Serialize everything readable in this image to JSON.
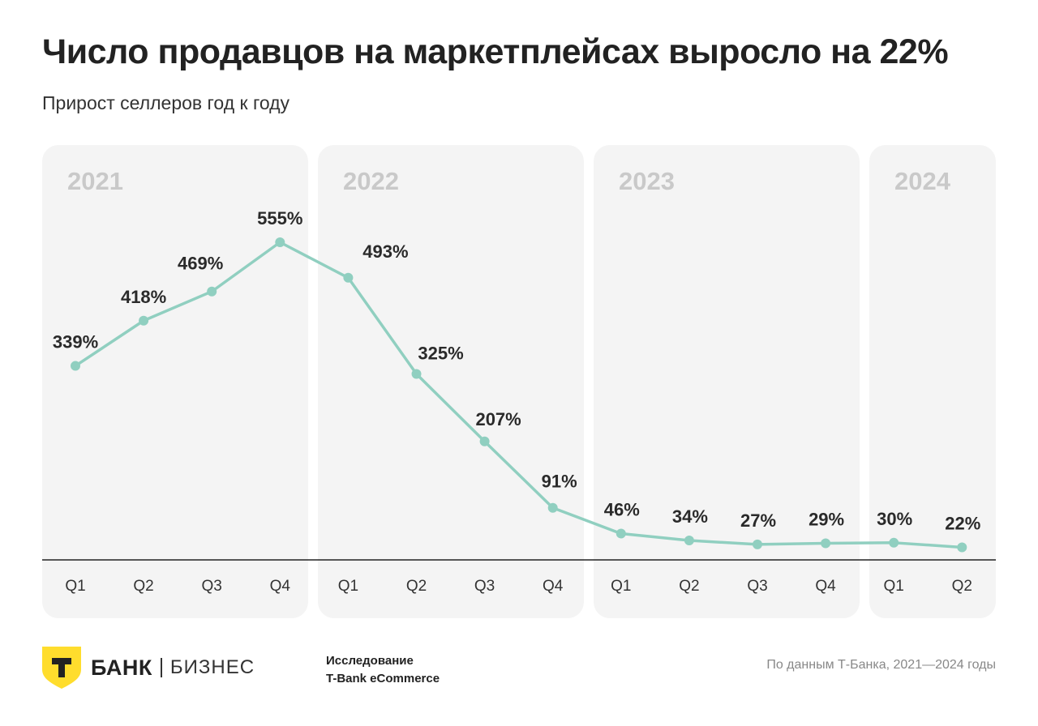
{
  "chart_data": {
    "type": "line",
    "title": "Число продавцов на маркетплейсах выросло на 22%",
    "subtitle": "Прирост селлеров год к году",
    "xlabel": "",
    "ylabel": "",
    "ylim": [
      0,
      555
    ],
    "grid": false,
    "groups": [
      {
        "label": "2021",
        "categories": [
          "Q1",
          "Q2",
          "Q3",
          "Q4"
        ]
      },
      {
        "label": "2022",
        "categories": [
          "Q1",
          "Q2",
          "Q3",
          "Q4"
        ]
      },
      {
        "label": "2023",
        "categories": [
          "Q1",
          "Q2",
          "Q3",
          "Q4"
        ]
      },
      {
        "label": "2024",
        "categories": [
          "Q1",
          "Q2"
        ]
      }
    ],
    "values": [
      339,
      418,
      469,
      555,
      493,
      325,
      207,
      91,
      46,
      34,
      27,
      29,
      30,
      22
    ],
    "data_labels": [
      "339%",
      "418%",
      "469%",
      "555%",
      "493%",
      "325%",
      "207%",
      "91%",
      "46%",
      "34%",
      "27%",
      "29%",
      "30%",
      "22%"
    ],
    "line_color": "#90cfc0"
  },
  "footer": {
    "brand": "БАНК",
    "brand_letter": "Т",
    "brand_sub": "БИЗНЕС",
    "study_line1": "Исследование",
    "study_line2": "T-Bank eCommerce",
    "source": "По данным Т-Банка, 2021—2024 годы"
  }
}
